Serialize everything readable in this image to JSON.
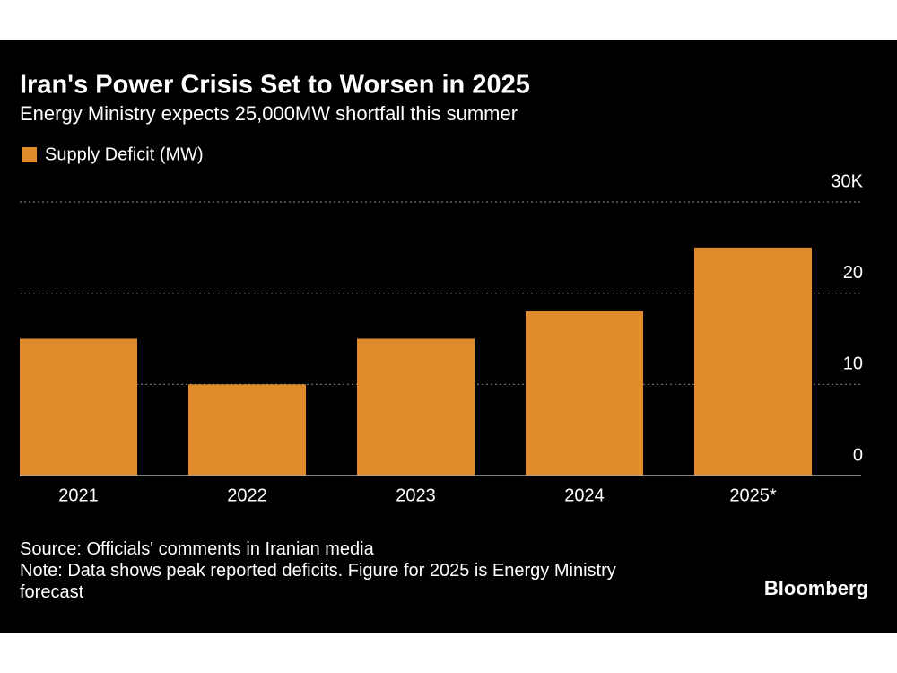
{
  "chart_data": {
    "type": "bar",
    "title": "Iran's Power Crisis Set to Worsen in 2025",
    "subtitle": "Energy Ministry expects 25,000MW shortfall this summer",
    "legend": "Supply Deficit (MW)",
    "categories": [
      "2021",
      "2022",
      "2023",
      "2024",
      "2025*"
    ],
    "values": [
      15000,
      10000,
      15000,
      18000,
      25000
    ],
    "color": "#e08b2b",
    "ylim": [
      0,
      30000
    ],
    "yticks": [
      0,
      {
        "value": 10000,
        "label": "10"
      },
      {
        "value": 20000,
        "label": "20"
      },
      {
        "value": 30000,
        "label": "30K"
      }
    ],
    "grid": true,
    "source": "Source: Officials' comments in Iranian media",
    "note": "Note: Data shows peak reported deficits. Figure for 2025 is Energy Ministry forecast",
    "brand": "Bloomberg"
  }
}
